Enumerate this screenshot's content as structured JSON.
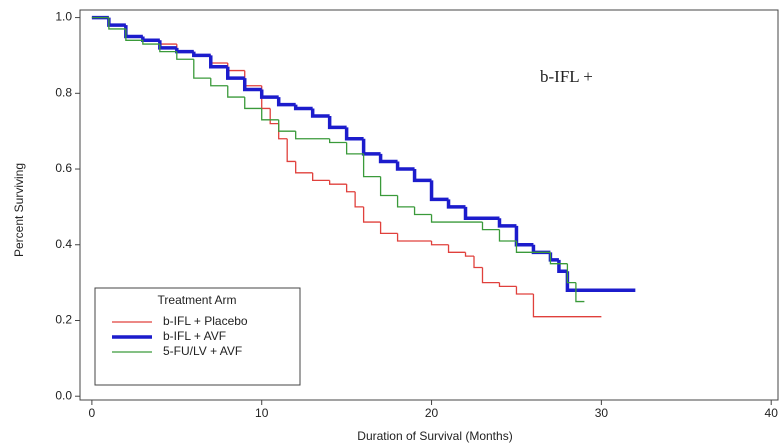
{
  "chart_data": {
    "type": "step",
    "annotation": "b-IFL +",
    "x_label": "Duration of Survival (Months)",
    "y_label": "Percent Surviving",
    "xlim": [
      -0.7,
      40.4
    ],
    "ylim": [
      -0.01,
      1.02
    ],
    "xticks": [
      0,
      10,
      20,
      30,
      40
    ],
    "yticks": [
      {
        "value": 0,
        "label": "0.0"
      },
      0.2,
      0.4,
      0.6,
      0.8,
      {
        "value": 1,
        "label": "1.0"
      }
    ],
    "legend_title": "Treatment Arm",
    "legend": "lower left",
    "series": [
      {
        "name": "b-IFL + Placebo",
        "color": "#e0403c",
        "width": 1.3,
        "x": [
          0,
          1,
          2,
          3,
          4,
          5,
          6,
          7,
          8,
          9,
          10,
          10.5,
          11,
          11.5,
          12,
          13,
          14,
          15,
          15.5,
          16,
          17,
          18,
          20,
          21,
          22,
          22.5,
          23,
          24,
          25,
          26,
          30
        ],
        "values": [
          1.0,
          0.98,
          0.95,
          0.94,
          0.93,
          0.91,
          0.9,
          0.88,
          0.86,
          0.82,
          0.76,
          0.72,
          0.68,
          0.62,
          0.59,
          0.57,
          0.56,
          0.54,
          0.5,
          0.46,
          0.43,
          0.41,
          0.4,
          0.38,
          0.37,
          0.34,
          0.3,
          0.29,
          0.27,
          0.21,
          0.21
        ]
      },
      {
        "name": "b-IFL + AVF",
        "color": "#1c1ccc",
        "width": 3.5,
        "x": [
          0,
          1,
          2,
          3,
          4,
          5,
          6,
          7,
          8,
          9,
          10,
          11,
          12,
          13,
          14,
          15,
          16,
          17,
          18,
          19,
          20,
          21,
          22,
          24,
          25,
          26,
          27,
          27.5,
          28,
          32
        ],
        "values": [
          1.0,
          0.98,
          0.95,
          0.94,
          0.92,
          0.91,
          0.9,
          0.87,
          0.84,
          0.81,
          0.79,
          0.77,
          0.76,
          0.74,
          0.71,
          0.68,
          0.64,
          0.62,
          0.6,
          0.57,
          0.52,
          0.5,
          0.47,
          0.45,
          0.4,
          0.38,
          0.36,
          0.33,
          0.28,
          0.28
        ]
      },
      {
        "name": "5-FU/LV + AVF",
        "color": "#3a9a3a",
        "width": 1.3,
        "x": [
          0,
          1,
          2,
          3,
          4,
          5,
          6,
          7,
          8,
          9,
          10,
          11,
          12,
          14,
          15,
          16,
          17,
          18,
          19,
          20,
          23,
          24,
          25,
          27,
          28,
          28.5,
          29
        ],
        "values": [
          1.0,
          0.97,
          0.94,
          0.93,
          0.91,
          0.89,
          0.84,
          0.82,
          0.79,
          0.76,
          0.73,
          0.7,
          0.68,
          0.67,
          0.64,
          0.58,
          0.53,
          0.5,
          0.48,
          0.46,
          0.44,
          0.41,
          0.38,
          0.35,
          0.3,
          0.25,
          0.25
        ]
      }
    ]
  }
}
